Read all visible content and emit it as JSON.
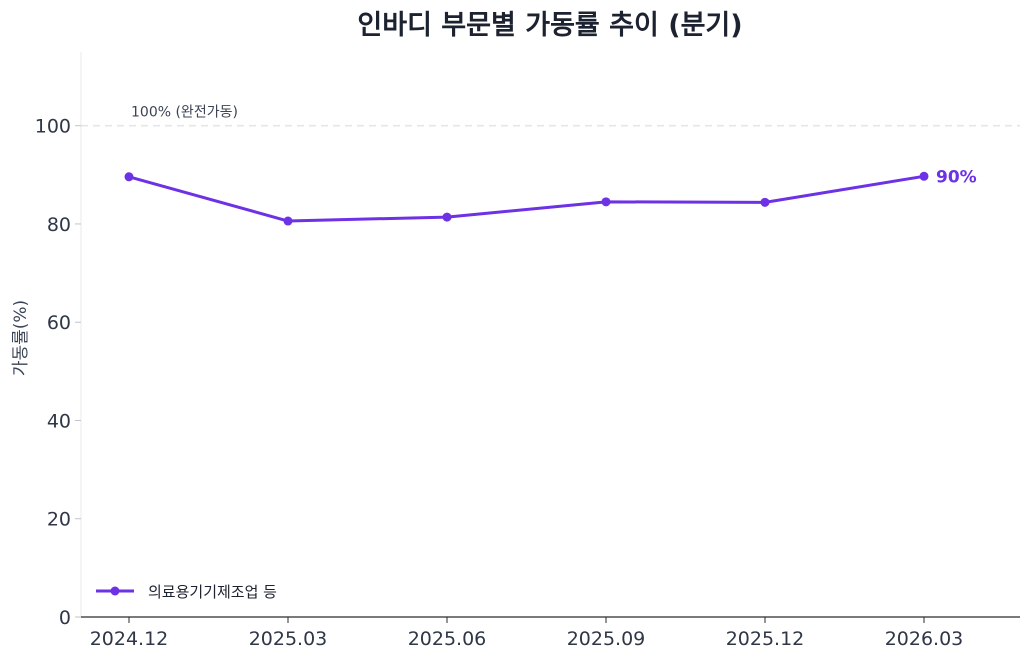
{
  "chart_data": {
    "type": "line",
    "title": "인바디 부문별 가동률 추이 (분기)",
    "ylabel": "가동률(%)",
    "xlabel": "",
    "ylim": [
      0,
      115
    ],
    "yticks": [
      0,
      20,
      40,
      60,
      80,
      100
    ],
    "categories": [
      "2024.12",
      "2025.03",
      "2025.06",
      "2025.09",
      "2025.12",
      "2026.03"
    ],
    "series": [
      {
        "name": "의료용기기제조업 등",
        "values": [
          89.6,
          80.6,
          81.4,
          84.5,
          84.4,
          89.7
        ],
        "color": "#6d31e6"
      }
    ],
    "reference_line": {
      "value": 100,
      "label": "100% (완전가동)",
      "color": "#e3e6ea"
    },
    "end_label": "90%",
    "grid": false,
    "legend": "bottom-left"
  }
}
